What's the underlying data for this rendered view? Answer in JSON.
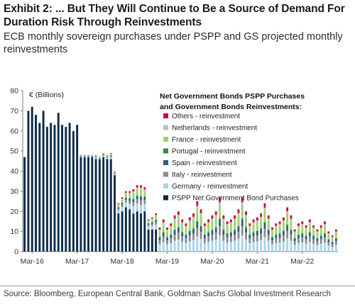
{
  "title": "Exhibit 2: ... But They Will Continue to Be a Source of Demand For Duration Risk Through Reinvestments",
  "subtitle": "ECB monthly sovereign purchases under PSPP and GS projected monthly reinvestments",
  "source": "Source: Bloomberg, European Central Bank, Goldman Sachs Global Investment Research",
  "chart_data": {
    "type": "bar",
    "stacked": true,
    "unit_label": "€ (Billions)",
    "legend_title_line1": "Net Government Bonds PSPP Purchases",
    "legend_title_line2": "and Government Bonds Reinvestments:",
    "legend_position": "top-right",
    "ylim": [
      0,
      80
    ],
    "yticks": [
      "0",
      "10",
      "20",
      "30",
      "40",
      "50",
      "60",
      "70",
      "80"
    ],
    "xtick_labels": [
      "Mar-16",
      "Mar-17",
      "Mar-18",
      "Mar-19",
      "Mar-20",
      "Mar-21",
      "Mar-22"
    ],
    "grid": false,
    "series_names": [
      "PSPP Net Government Bond Purchases",
      "Germany - reinvestment",
      "Italy - reinvestment",
      "Spain - reinvestment",
      "Portugal - reinvestment",
      "France - reinvestment",
      "Netherlands - reinvestment",
      "Others - reinvestment"
    ],
    "series_colors": [
      "#0b2a4a",
      "#a9d4ec",
      "#8c8c8c",
      "#2f5d8c",
      "#2e8b3e",
      "#9bd46a",
      "#bdbdbd",
      "#c8102e"
    ],
    "legend_order": [
      "Others - reinvestment",
      "Netherlands - reinvestment",
      "France - reinvestment",
      "Portugal - reinvestment",
      "Spain - reinvestment",
      "Italy - reinvestment",
      "Germany - reinvestment",
      "PSPP Net Government Bond Purchases"
    ],
    "months": [
      "Jan-16",
      "Feb-16",
      "Mar-16",
      "Apr-16",
      "May-16",
      "Jun-16",
      "Jul-16",
      "Aug-16",
      "Sep-16",
      "Oct-16",
      "Nov-16",
      "Dec-16",
      "Jan-17",
      "Feb-17",
      "Mar-17",
      "Apr-17",
      "May-17",
      "Jun-17",
      "Jul-17",
      "Aug-17",
      "Sep-17",
      "Oct-17",
      "Nov-17",
      "Dec-17",
      "Jan-18",
      "Feb-18",
      "Mar-18",
      "Apr-18",
      "May-18",
      "Jun-18",
      "Jul-18",
      "Aug-18",
      "Sep-18",
      "Oct-18",
      "Nov-18",
      "Dec-18",
      "Jan-19",
      "Feb-19",
      "Mar-19",
      "Apr-19",
      "May-19",
      "Jun-19",
      "Jul-19",
      "Aug-19",
      "Sep-19",
      "Oct-19",
      "Nov-19",
      "Dec-19",
      "Jan-20",
      "Feb-20",
      "Mar-20",
      "Apr-20",
      "May-20",
      "Jun-20",
      "Jul-20",
      "Aug-20",
      "Sep-20",
      "Oct-20",
      "Nov-20",
      "Dec-20",
      "Jan-21",
      "Feb-21",
      "Mar-21",
      "Apr-21",
      "May-21",
      "Jun-21",
      "Jul-21",
      "Aug-21",
      "Sep-21",
      "Oct-21",
      "Nov-21",
      "Dec-21",
      "Jan-22",
      "Feb-22",
      "Mar-22",
      "Apr-22",
      "May-22",
      "Jun-22",
      "Jul-22",
      "Aug-22",
      "Sep-22",
      "Oct-22",
      "Nov-22",
      "Dec-22"
    ],
    "pspp_net": [
      47,
      70,
      72,
      68,
      64,
      70,
      62,
      64,
      63,
      69,
      63,
      62,
      64,
      60,
      63,
      47,
      47,
      47,
      47,
      46,
      46,
      47,
      46,
      46,
      38,
      19,
      20,
      22,
      21,
      19,
      20,
      19,
      20,
      11,
      11,
      11,
      0,
      0,
      0,
      0,
      0,
      0,
      0,
      0,
      0,
      0,
      0,
      0,
      0,
      0,
      0,
      0,
      0,
      0,
      0,
      0,
      0,
      0,
      0,
      0,
      0,
      0,
      0,
      0,
      0,
      0,
      0,
      0,
      0,
      0,
      0,
      0,
      0,
      0,
      0,
      0,
      0,
      0,
      0,
      0,
      0,
      0,
      0,
      0
    ],
    "reinvestment_total": [
      0,
      0,
      0,
      0,
      0,
      0,
      0,
      0,
      0,
      0,
      0,
      0,
      0,
      0,
      0,
      1,
      1,
      1,
      1,
      2,
      1,
      2,
      2,
      3,
      2,
      5,
      7,
      8,
      9,
      12,
      13,
      14,
      12,
      5,
      6,
      8,
      12,
      16,
      12,
      14,
      18,
      20,
      16,
      14,
      17,
      19,
      25,
      21,
      14,
      16,
      18,
      20,
      27,
      18,
      15,
      16,
      18,
      21,
      27,
      20,
      14,
      16,
      17,
      19,
      24,
      18,
      12,
      14,
      15,
      17,
      22,
      18,
      11,
      14,
      15,
      13,
      16,
      13,
      11,
      13,
      15,
      10,
      8,
      11
    ]
  }
}
